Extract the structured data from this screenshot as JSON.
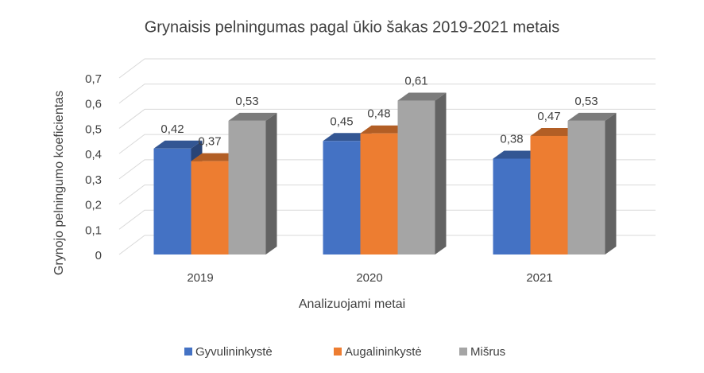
{
  "chart_data": {
    "type": "bar3d",
    "title": "Grynaisis pelningumas pagal ūkio šakas 2019-2021 metais",
    "x_label": "Analizuojami metai",
    "y_label": "Grynojo pelningumo koeficientas",
    "categories": [
      "2019",
      "2020",
      "2021"
    ],
    "series": [
      {
        "name": "Gyvulininkystė",
        "color": "#4472c4",
        "values": [
          0.42,
          0.45,
          0.38
        ],
        "value_labels": [
          "0,42",
          "0,45",
          "0,38"
        ]
      },
      {
        "name": "Augalininkystė",
        "color": "#ed7d31",
        "values": [
          0.37,
          0.48,
          0.47
        ],
        "value_labels": [
          "0,37",
          "0,48",
          "0,47"
        ]
      },
      {
        "name": "Mišrus",
        "color": "#a5a5a5",
        "values": [
          0.53,
          0.61,
          0.53
        ],
        "value_labels": [
          "0,53",
          "0,61",
          "0,53"
        ]
      }
    ],
    "ylim": [
      0,
      0.7
    ],
    "yticks": [
      0,
      {
        "value": 0.1,
        "label": "0,1"
      },
      {
        "value": 0.2,
        "label": "0,2"
      },
      {
        "value": 0.3,
        "label": "0,3"
      },
      {
        "value": 0.4,
        "label": "0,4"
      },
      {
        "value": 0.5,
        "label": "0,5"
      },
      {
        "value": 0.6,
        "label": "0,6"
      },
      {
        "value": 0.7,
        "label": "0,7"
      }
    ],
    "grid": true,
    "legend": "bottom"
  }
}
